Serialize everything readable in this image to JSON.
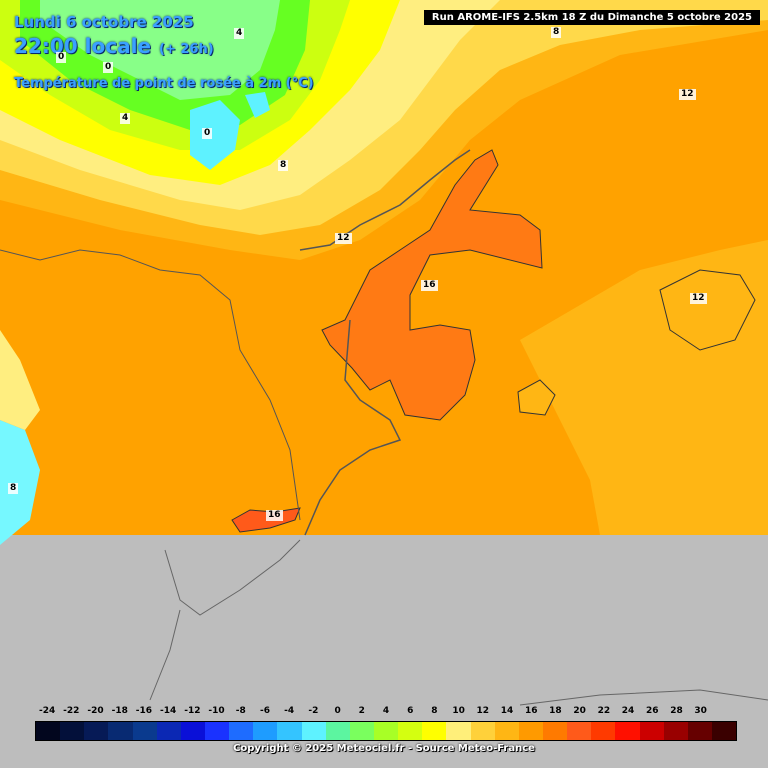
{
  "header": {
    "date": "Lundi 6 octobre 2025",
    "time": "22:00 locale",
    "lead": "(+ 26h)",
    "parameter": "Température de point de rosée à 2m (°C)"
  },
  "run_label": "Run AROME-IFS 2.5km 18 Z du Dimanche 5 octobre 2025",
  "contour_labels": [
    {
      "text": "4"
    },
    {
      "text": "0"
    },
    {
      "text": "0"
    },
    {
      "text": "4"
    },
    {
      "text": "0"
    },
    {
      "text": "8"
    },
    {
      "text": "8"
    },
    {
      "text": "12"
    },
    {
      "text": "12"
    },
    {
      "text": "16"
    },
    {
      "text": "12"
    },
    {
      "text": "8"
    },
    {
      "text": "16"
    }
  ],
  "scale": {
    "ticks": [
      "-24",
      "-22",
      "-20",
      "-18",
      "-16",
      "-14",
      "-12",
      "-10",
      "-8",
      "-6",
      "-4",
      "-2",
      "0",
      "2",
      "4",
      "6",
      "8",
      "10",
      "12",
      "14",
      "16",
      "18",
      "20",
      "22",
      "24",
      "26",
      "28",
      "30"
    ],
    "colors": [
      "#02061e",
      "#03103a",
      "#061a56",
      "#082a72",
      "#0a3a8e",
      "#0b28b4",
      "#0a10d8",
      "#1a32ff",
      "#1e6cff",
      "#1e9cff",
      "#34c4ff",
      "#5ef2ff",
      "#5cf5a0",
      "#7aff5e",
      "#a8ff26",
      "#d4ff10",
      "#ffff00",
      "#ffef7a",
      "#ffd13a",
      "#ffb614",
      "#ff9a00",
      "#ff7a00",
      "#ff5a1a",
      "#ff3a00",
      "#ff1000",
      "#cc0000",
      "#990000",
      "#660000",
      "#3a0000"
    ]
  },
  "copyright": "Copyright © 2025 Meteociel.fr - Source Meteo-France"
}
